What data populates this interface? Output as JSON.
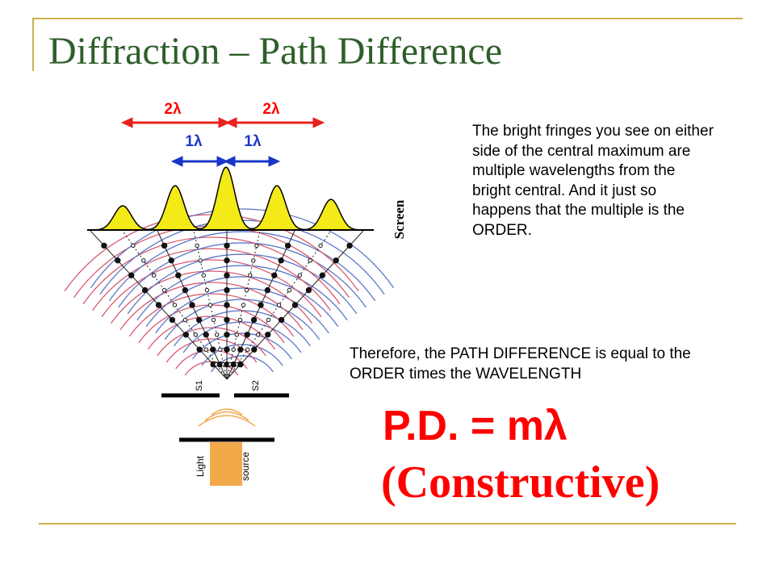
{
  "slide": {
    "title": "Diffraction – Path Difference",
    "paragraph_1": "The bright fringes you see on either side of the central maximum are multiple wavelengths from the bright central. And it just so happens that the multiple is the ORDER.",
    "paragraph_2": "Therefore, the PATH DIFFERENCE is equal to the ORDER times the WAVELENGTH",
    "formula": "P.D. = mλ",
    "formula_note": "(Constructive)"
  },
  "figure": {
    "red_labels": [
      "2λ",
      "2λ"
    ],
    "blue_labels": [
      "1λ",
      "1λ"
    ],
    "screen_label": "Screen",
    "slit_labels": [
      "S1",
      "S2"
    ],
    "source_labels": [
      "Light",
      "source"
    ]
  },
  "colors": {
    "rule": "#c9b14c",
    "title": "#2f5e2a",
    "red": "#ff0000",
    "red_arrow": "#e8231e",
    "blue_arrow": "#1a36c8",
    "fringe": "#f4ea18",
    "wave_red": "#d85a6e",
    "wave_blue": "#5b78c8",
    "source": "#f2a94a"
  }
}
